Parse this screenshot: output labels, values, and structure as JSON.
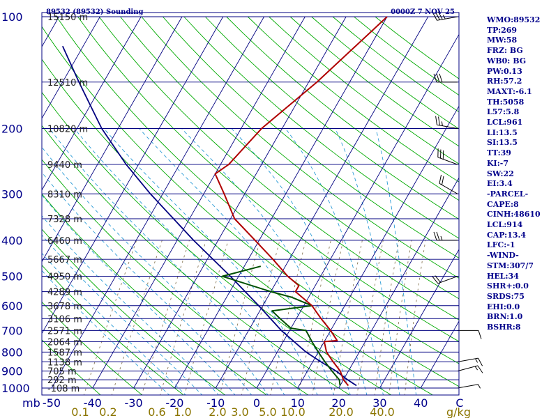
{
  "header": {
    "station_title": "89532 (89532) Sounding",
    "time_label": "0000Z  7 NOV 25"
  },
  "indices": [
    "WMO:89532",
    "TP:269",
    "MW:58",
    "FRZ: BG",
    "WB0: BG",
    "PW:0.13",
    "RH:57.2",
    "MAXT:-6.1",
    "TH:5058",
    "L57:5.8",
    "LCL:961",
    "LI:13.5",
    "SI:13.5",
    "TT:39",
    "KI:-7",
    "SW:22",
    "EI:3.4",
    "-PARCEL-",
    "CAPE:8",
    "CINH:48610",
    "LCL:914",
    "CAP:13.4",
    "LFC:-1",
    "-WIND-",
    "STM:307/7",
    "HEL:34",
    "SHR+:0.0",
    "SRDS:75",
    "EHI:0.0",
    "BRN:1.0",
    "BSHR:8"
  ],
  "colors": {
    "isobar": "#000080",
    "isotherm": "#000080",
    "dry_adiabat": "#00aa00",
    "moist_adiabat": "#2a9bd6",
    "mixing_ratio": "#8b7b5a",
    "temperature": "#b00000",
    "dewpoint": "#005000",
    "parcel": "#000080",
    "pressure_label": "#00008b",
    "height_label": "#222222",
    "temp_label": "#00008b",
    "mixing_label": "#8b7500",
    "barb": "#000000"
  },
  "chart_data": {
    "type": "skew-t log-p sounding",
    "pressure_axis": {
      "unit_label": "mb",
      "ticks": [
        100,
        200,
        300,
        400,
        500,
        600,
        700,
        800,
        900,
        1000
      ],
      "range": [
        1000,
        100
      ],
      "scale": "log"
    },
    "temperature_axis": {
      "ticks": [
        -50,
        -40,
        -30,
        -20,
        -10,
        0,
        10,
        20,
        30,
        40
      ],
      "end_label": "C"
    },
    "mixing_ratio_axis": {
      "unit_label": "g/kg",
      "ticks": [
        "0.1",
        "0.2",
        "0.6",
        "1.0",
        "2.0",
        "3.0",
        "5.0",
        "10.0",
        "20.0",
        "40.0"
      ]
    },
    "heights": [
      {
        "p": 100,
        "label": "15150 m"
      },
      {
        "p": 150,
        "label": "12510 m"
      },
      {
        "p": 200,
        "label": "10820 m"
      },
      {
        "p": 250,
        "label": "9440 m"
      },
      {
        "p": 300,
        "label": "8310 m"
      },
      {
        "p": 350,
        "label": "7328 m"
      },
      {
        "p": 400,
        "label": "6460 m"
      },
      {
        "p": 450,
        "label": "5667 m"
      },
      {
        "p": 500,
        "label": "4950 m"
      },
      {
        "p": 550,
        "label": "4289 m"
      },
      {
        "p": 600,
        "label": "3678 m"
      },
      {
        "p": 650,
        "label": "3106 m"
      },
      {
        "p": 700,
        "label": "2571 m"
      },
      {
        "p": 750,
        "label": "2064 m"
      },
      {
        "p": 800,
        "label": "1587 m"
      },
      {
        "p": 850,
        "label": "1138 m"
      },
      {
        "p": 900,
        "label": "705 m"
      },
      {
        "p": 950,
        "label": "292 m"
      },
      {
        "p": 1000,
        "label": "-108 m"
      }
    ],
    "temperature_profile": [
      {
        "p": 985,
        "t": 22.0
      },
      {
        "p": 950,
        "t": 20.0
      },
      {
        "p": 900,
        "t": 18.0
      },
      {
        "p": 850,
        "t": 15.0
      },
      {
        "p": 800,
        "t": 12.0
      },
      {
        "p": 750,
        "t": 10.0
      },
      {
        "p": 745,
        "t": 13.0
      },
      {
        "p": 700,
        "t": 10.0
      },
      {
        "p": 650,
        "t": 6.0
      },
      {
        "p": 600,
        "t": 2.0
      },
      {
        "p": 550,
        "t": -4.0
      },
      {
        "p": 530,
        "t": -4.0
      },
      {
        "p": 500,
        "t": -8.0
      },
      {
        "p": 450,
        "t": -14.0
      },
      {
        "p": 400,
        "t": -21.0
      },
      {
        "p": 350,
        "t": -29.0
      },
      {
        "p": 300,
        "t": -35.0
      },
      {
        "p": 265,
        "t": -40.0
      },
      {
        "p": 250,
        "t": -38.0
      },
      {
        "p": 200,
        "t": -35.0
      },
      {
        "p": 150,
        "t": -28.0
      },
      {
        "p": 100,
        "t": -20.0
      }
    ],
    "dewpoint_profile": [
      {
        "p": 985,
        "t": 20.0
      },
      {
        "p": 950,
        "t": 19.0
      },
      {
        "p": 900,
        "t": 16.0
      },
      {
        "p": 850,
        "t": 13.0
      },
      {
        "p": 800,
        "t": 10.0
      },
      {
        "p": 750,
        "t": 7.0
      },
      {
        "p": 700,
        "t": 4.0
      },
      {
        "p": 690,
        "t": 0.0
      },
      {
        "p": 650,
        "t": -4.0
      },
      {
        "p": 620,
        "t": -7.0
      },
      {
        "p": 600,
        "t": 2.0
      },
      {
        "p": 570,
        "t": -4.0
      },
      {
        "p": 550,
        "t": -10.0
      },
      {
        "p": 500,
        "t": -24.0
      },
      {
        "p": 470,
        "t": -16.0
      }
    ],
    "parcel_profile": [
      {
        "p": 985,
        "t": 24.0
      },
      {
        "p": 950,
        "t": 21.0
      },
      {
        "p": 900,
        "t": 17.0
      },
      {
        "p": 850,
        "t": 12.0
      },
      {
        "p": 800,
        "t": 7.0
      },
      {
        "p": 700,
        "t": -2.0
      },
      {
        "p": 600,
        "t": -11.0
      },
      {
        "p": 500,
        "t": -22.0
      },
      {
        "p": 400,
        "t": -36.0
      },
      {
        "p": 300,
        "t": -53.0
      },
      {
        "p": 250,
        "t": -63.0
      },
      {
        "p": 200,
        "t": -74.0
      },
      {
        "p": 150,
        "t": -86.0
      },
      {
        "p": 120,
        "t": -95.0
      }
    ],
    "wind_barbs": [
      {
        "p": 1000,
        "dir": 80,
        "kt": 5
      },
      {
        "p": 900,
        "dir": 75,
        "kt": 15
      },
      {
        "p": 850,
        "dir": 80,
        "kt": 15
      },
      {
        "p": 700,
        "dir": 90,
        "kt": 10
      },
      {
        "p": 500,
        "dir": 250,
        "kt": 20
      },
      {
        "p": 400,
        "dir": 270,
        "kt": 25
      },
      {
        "p": 300,
        "dir": 300,
        "kt": 20
      },
      {
        "p": 250,
        "dir": 290,
        "kt": 30
      },
      {
        "p": 200,
        "dir": 280,
        "kt": 25
      },
      {
        "p": 150,
        "dir": 270,
        "kt": 30
      },
      {
        "p": 100,
        "dir": 260,
        "kt": 35
      }
    ]
  }
}
